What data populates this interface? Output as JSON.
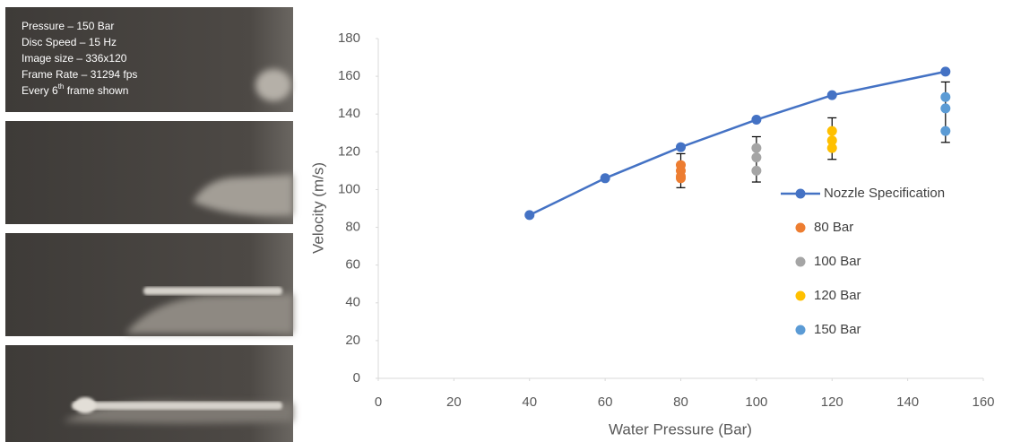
{
  "panel": {
    "lines": [
      "Pressure – 150  Bar",
      "Disc Speed – 15 Hz",
      "Image size – 336x120",
      "Frame Rate – 31294 fps"
    ],
    "last_line": {
      "pre": "Every 6",
      "sup": "th",
      "post": " frame shown"
    }
  },
  "chart_data": {
    "type": "scatter",
    "x_label": "Water Pressure (Bar)",
    "y_label": "Velocity (m/s)",
    "xlim": [
      0,
      160
    ],
    "xticks": [
      0,
      20,
      40,
      60,
      80,
      100,
      120,
      140,
      160
    ],
    "ylim": [
      0,
      180
    ],
    "yticks": [
      0,
      20,
      40,
      60,
      80,
      100,
      120,
      140,
      160,
      180
    ],
    "grid": false,
    "legend": "right",
    "series": [
      {
        "name": "Nozzle Specification",
        "type": "line",
        "color": "#4472c4",
        "x": [
          40,
          60,
          80,
          100,
          120,
          150
        ],
        "values": [
          86.5,
          106,
          122.5,
          137,
          150,
          162.5
        ]
      },
      {
        "name": "80 Bar",
        "type": "scatter",
        "color": "#ed7d31",
        "x": [
          80,
          80,
          80,
          80
        ],
        "values": [
          113,
          110,
          107,
          106
        ],
        "error_bar": {
          "center": 110,
          "error": 9
        }
      },
      {
        "name": "100 Bar",
        "type": "scatter",
        "color": "#a5a5a5",
        "x": [
          100,
          100,
          100
        ],
        "values": [
          122,
          117,
          110
        ],
        "error_bar": {
          "center": 116,
          "error": 12
        }
      },
      {
        "name": "120 Bar",
        "type": "scatter",
        "color": "#ffc000",
        "x": [
          120,
          120,
          120
        ],
        "values": [
          131,
          126,
          122
        ],
        "error_bar": {
          "center": 127,
          "error": 11
        }
      },
      {
        "name": "150 Bar",
        "type": "scatter",
        "color": "#5b9bd5",
        "x": [
          150,
          150,
          150
        ],
        "values": [
          149,
          143,
          131
        ],
        "error_bar": {
          "center": 141,
          "error": 16
        }
      }
    ]
  }
}
